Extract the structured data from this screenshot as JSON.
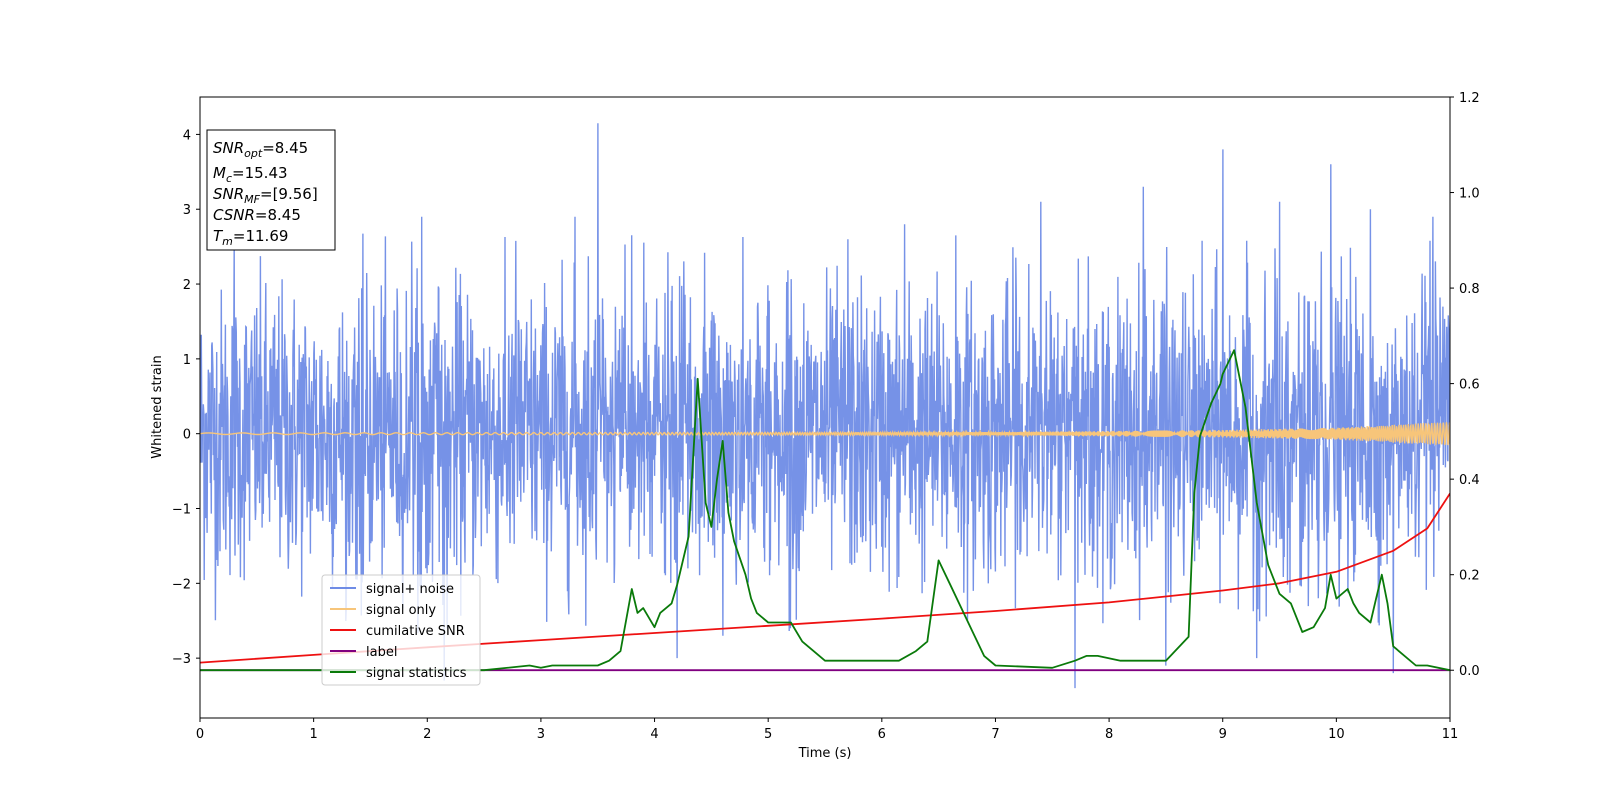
{
  "chart_data": {
    "type": "line",
    "xlabel": "Time (s)",
    "ylabel": "Whitened strain",
    "xlim": [
      0,
      11
    ],
    "ylim": [
      -3.8,
      4.5
    ],
    "y2lim": [
      -0.1,
      1.2
    ],
    "xticks": [
      "0",
      "1",
      "2",
      "3",
      "4",
      "5",
      "6",
      "7",
      "8",
      "9",
      "10",
      "11"
    ],
    "yticks": [
      {
        "v": -3,
        "t": "−3"
      },
      {
        "v": -2,
        "t": "−2"
      },
      {
        "v": -1,
        "t": "−1"
      },
      {
        "v": 0,
        "t": "0"
      },
      {
        "v": 1,
        "t": "1"
      },
      {
        "v": 2,
        "t": "2"
      },
      {
        "v": 3,
        "t": "3"
      },
      {
        "v": 4,
        "t": "4"
      }
    ],
    "y2ticks": [
      "0.0",
      "0.2",
      "0.4",
      "0.6",
      "0.8",
      "1.0",
      "1.2"
    ],
    "annotation": [
      {
        "sym": "SNR",
        "sub": "opt",
        "val": "=8.45"
      },
      {
        "sym": "M",
        "sub": "c",
        "val": "=15.43"
      },
      {
        "sym": "SNR",
        "sub": "MF",
        "val": "=[9.56]"
      },
      {
        "sym": "CSNR",
        "sub": "",
        "val": "=8.45"
      },
      {
        "sym": "T",
        "sub": "m",
        "val": "=11.69"
      }
    ],
    "legend": [
      {
        "label": "signal+ noise",
        "color": "#6f8ce6"
      },
      {
        "label": "signal only",
        "color": "#f7c57a"
      },
      {
        "label": "cumilative SNR",
        "color": "#ee1111"
      },
      {
        "label": "label",
        "color": "#800080"
      },
      {
        "label": "signal statistics",
        "color": "#0a7a0a"
      }
    ],
    "legend_position": "lower-left",
    "series": [
      {
        "name": "signal+ noise",
        "axis": "left",
        "color": "#6f8ce6",
        "noise_std": 0.95,
        "spikes": [
          [
            0.3,
            2.6
          ],
          [
            1.95,
            2.9
          ],
          [
            2.15,
            -3.3
          ],
          [
            3.3,
            2.9
          ],
          [
            3.5,
            4.15
          ],
          [
            4.2,
            -3.0
          ],
          [
            4.6,
            -2.7
          ],
          [
            5.7,
            2.6
          ],
          [
            6.2,
            2.8
          ],
          [
            6.65,
            2.65
          ],
          [
            7.4,
            3.1
          ],
          [
            7.7,
            -3.4
          ],
          [
            8.3,
            3.3
          ],
          [
            8.5,
            -3.1
          ],
          [
            9.0,
            3.8
          ],
          [
            9.3,
            -3.0
          ],
          [
            9.5,
            3.1
          ],
          [
            9.95,
            3.6
          ],
          [
            10.3,
            3.0
          ],
          [
            10.5,
            -3.2
          ],
          [
            10.85,
            2.9
          ]
        ]
      },
      {
        "name": "signal only",
        "axis": "left",
        "color": "#f7c57a",
        "amplitude_growth": [
          [
            0,
            0.01
          ],
          [
            7,
            0.02
          ],
          [
            9,
            0.05
          ],
          [
            10,
            0.08
          ],
          [
            11,
            0.16
          ]
        ]
      },
      {
        "name": "cumilative SNR",
        "axis": "right",
        "color": "#ee1111",
        "x": [
          0,
          1,
          2,
          3,
          4,
          5,
          6,
          7,
          8,
          9,
          9.5,
          10,
          10.5,
          10.8,
          11
        ],
        "y": [
          0.016,
          0.032,
          0.048,
          0.063,
          0.078,
          0.093,
          0.108,
          0.124,
          0.142,
          0.167,
          0.182,
          0.206,
          0.25,
          0.297,
          0.37
        ]
      },
      {
        "name": "label",
        "axis": "right",
        "color": "#800080",
        "x": [
          0,
          11
        ],
        "y": [
          0.0,
          0.0
        ]
      },
      {
        "name": "signal statistics",
        "axis": "right",
        "color": "#0a7a0a",
        "x": [
          0,
          2.5,
          2.9,
          3.0,
          3.1,
          3.2,
          3.5,
          3.6,
          3.7,
          3.8,
          3.85,
          3.9,
          4.0,
          4.05,
          4.15,
          4.2,
          4.3,
          4.38,
          4.45,
          4.5,
          4.55,
          4.6,
          4.65,
          4.7,
          4.8,
          4.85,
          4.9,
          5.0,
          5.1,
          5.2,
          5.3,
          5.4,
          5.5,
          5.6,
          5.8,
          6.0,
          6.15,
          6.3,
          6.4,
          6.5,
          6.6,
          6.8,
          6.9,
          7.0,
          7.5,
          7.7,
          7.8,
          7.9,
          8.1,
          8.5,
          8.7,
          8.75,
          8.8,
          8.9,
          8.98,
          9.0,
          9.1,
          9.2,
          9.3,
          9.4,
          9.5,
          9.6,
          9.7,
          9.8,
          9.9,
          9.95,
          10.0,
          10.1,
          10.15,
          10.2,
          10.3,
          10.35,
          10.4,
          10.45,
          10.5,
          10.7,
          10.8,
          11.0
        ],
        "y": [
          0.0,
          0.0,
          0.01,
          0.005,
          0.01,
          0.01,
          0.01,
          0.02,
          0.04,
          0.17,
          0.12,
          0.13,
          0.09,
          0.12,
          0.14,
          0.18,
          0.28,
          0.61,
          0.35,
          0.3,
          0.4,
          0.48,
          0.33,
          0.27,
          0.2,
          0.15,
          0.12,
          0.1,
          0.1,
          0.1,
          0.06,
          0.04,
          0.02,
          0.02,
          0.02,
          0.02,
          0.02,
          0.04,
          0.06,
          0.23,
          0.18,
          0.08,
          0.03,
          0.01,
          0.005,
          0.02,
          0.03,
          0.03,
          0.02,
          0.02,
          0.07,
          0.37,
          0.49,
          0.56,
          0.6,
          0.62,
          0.67,
          0.55,
          0.35,
          0.22,
          0.16,
          0.14,
          0.08,
          0.09,
          0.13,
          0.2,
          0.15,
          0.17,
          0.14,
          0.12,
          0.1,
          0.15,
          0.2,
          0.14,
          0.05,
          0.01,
          0.01,
          0.0
        ]
      }
    ]
  }
}
